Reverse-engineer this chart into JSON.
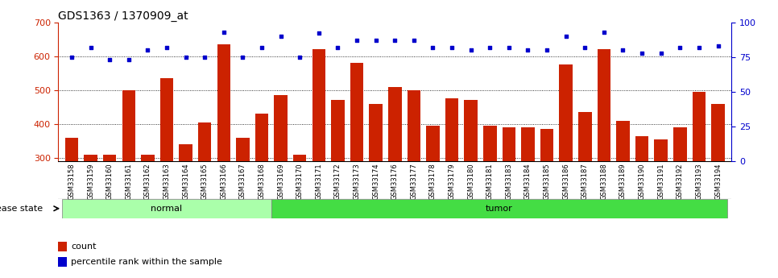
{
  "title": "GDS1363 / 1370909_at",
  "samples": [
    "GSM33158",
    "GSM33159",
    "GSM33160",
    "GSM33161",
    "GSM33162",
    "GSM33163",
    "GSM33164",
    "GSM33165",
    "GSM33166",
    "GSM33167",
    "GSM33168",
    "GSM33169",
    "GSM33170",
    "GSM33171",
    "GSM33172",
    "GSM33173",
    "GSM33174",
    "GSM33176",
    "GSM33177",
    "GSM33178",
    "GSM33179",
    "GSM33180",
    "GSM33181",
    "GSM33183",
    "GSM33184",
    "GSM33185",
    "GSM33186",
    "GSM33187",
    "GSM33188",
    "GSM33189",
    "GSM33190",
    "GSM33191",
    "GSM33192",
    "GSM33193",
    "GSM33194"
  ],
  "counts": [
    360,
    310,
    310,
    500,
    310,
    535,
    340,
    405,
    635,
    360,
    430,
    485,
    310,
    620,
    470,
    580,
    460,
    510,
    500,
    395,
    475,
    470,
    395,
    390,
    390,
    385,
    575,
    435,
    620,
    410,
    365,
    355,
    390,
    495,
    460
  ],
  "percentiles": [
    75,
    82,
    73,
    73,
    80,
    82,
    75,
    75,
    93,
    75,
    82,
    90,
    75,
    92,
    82,
    87,
    87,
    87,
    87,
    82,
    82,
    80,
    82,
    82,
    80,
    80,
    90,
    82,
    93,
    80,
    78,
    78,
    82,
    82,
    83
  ],
  "group": [
    "normal",
    "normal",
    "normal",
    "normal",
    "normal",
    "normal",
    "normal",
    "normal",
    "normal",
    "normal",
    "normal",
    "tumor",
    "tumor",
    "tumor",
    "tumor",
    "tumor",
    "tumor",
    "tumor",
    "tumor",
    "tumor",
    "tumor",
    "tumor",
    "tumor",
    "tumor",
    "tumor",
    "tumor",
    "tumor",
    "tumor",
    "tumor",
    "tumor",
    "tumor",
    "tumor",
    "tumor",
    "tumor",
    "tumor"
  ],
  "ylim_left": [
    290,
    700
  ],
  "ylim_right": [
    0,
    100
  ],
  "yticks_left": [
    300,
    400,
    500,
    600,
    700
  ],
  "yticks_right": [
    0,
    25,
    50,
    75,
    100
  ],
  "bar_color": "#cc2200",
  "dot_color": "#0000cc",
  "normal_color": "#aaffaa",
  "tumor_color": "#44dd44",
  "xlabel_bg": "#d8d8d8",
  "grid_color": "#000000"
}
